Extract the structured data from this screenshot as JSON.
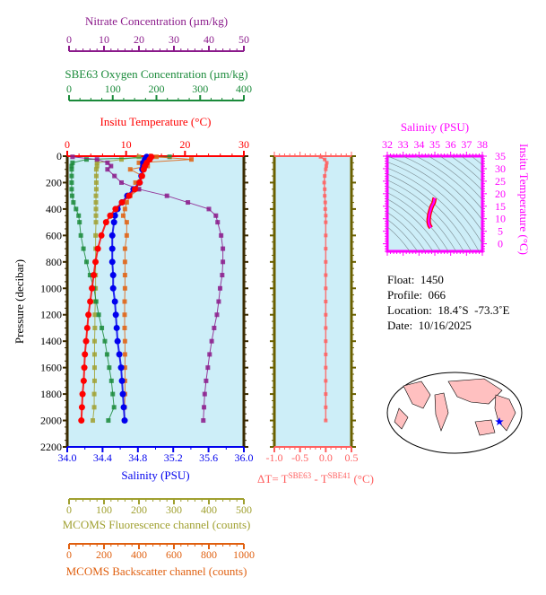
{
  "chart_data": {
    "type": "line",
    "ylabel": "Pressure (decibar)",
    "ylim": [
      0,
      2200
    ],
    "yticks": [
      "0",
      "200",
      "400",
      "600",
      "800",
      "1000",
      "1200",
      "1400",
      "1600",
      "1800",
      "2000",
      "2200"
    ],
    "axes": {
      "nitrate": {
        "label": "Nitrate Concentration (µm/kg)",
        "range": [
          0,
          50
        ],
        "ticks": [
          "0",
          "10",
          "20",
          "30",
          "40",
          "50"
        ],
        "color": "#8b1a8b"
      },
      "oxygen": {
        "label": "SBE63 Oxygen Concentration (µm/kg)",
        "range": [
          0,
          400
        ],
        "ticks": [
          "0",
          "100",
          "200",
          "300",
          "400"
        ],
        "color": "#1a8a3a"
      },
      "temperature": {
        "label": "Insitu Temperature (°C)",
        "range": [
          0,
          30
        ],
        "ticks": [
          "0",
          "10",
          "20",
          "30"
        ],
        "color": "#ff0000"
      },
      "salinity": {
        "label": "Salinity (PSU)",
        "range": [
          34.0,
          36.0
        ],
        "ticks": [
          "34.0",
          "34.4",
          "34.8",
          "35.2",
          "35.6",
          "36.0"
        ],
        "color": "#0000ee"
      },
      "fluorescence": {
        "label": "MCOMS Fluorescence channel (counts)",
        "range": [
          0,
          500
        ],
        "ticks": [
          "0",
          "100",
          "200",
          "300",
          "400",
          "500"
        ],
        "color": "#a0a030"
      },
      "backscatter": {
        "label": "MCOMS Backscatter channel (counts)",
        "range": [
          0,
          1000
        ],
        "ticks": [
          "0",
          "200",
          "400",
          "600",
          "800",
          "1000"
        ],
        "color": "#e06010"
      },
      "delta_t": {
        "label_prefix": "ΔT= T",
        "sup1": "SBE63",
        "mid": " - T",
        "sup2": "SBE41",
        "suffix": " (°C)",
        "range": [
          -1.0,
          0.5
        ],
        "ticks": [
          "-1.0",
          "-0.5",
          "0.0",
          "0.5"
        ],
        "color": "#ff6060"
      }
    },
    "pressure": [
      5,
      25,
      50,
      75,
      100,
      150,
      200,
      250,
      300,
      350,
      400,
      450,
      500,
      600,
      700,
      800,
      900,
      1000,
      1100,
      1200,
      1300,
      1400,
      1500,
      1600,
      1700,
      1800,
      1900,
      2000
    ],
    "series": [
      {
        "key": "temperature",
        "values": [
          14.3,
          14.0,
          13.5,
          13.2,
          13.0,
          12.7,
          12.3,
          11.5,
          10.5,
          9.3,
          8.2,
          7.3,
          6.6,
          5.8,
          5.2,
          4.8,
          4.5,
          4.2,
          3.9,
          3.6,
          3.4,
          3.2,
          3.0,
          2.9,
          2.8,
          2.6,
          2.5,
          2.4
        ]
      },
      {
        "key": "salinity",
        "values": [
          34.9,
          34.88,
          34.86,
          34.86,
          34.85,
          34.84,
          34.82,
          34.75,
          34.68,
          34.62,
          34.57,
          34.54,
          34.53,
          34.51,
          34.51,
          34.51,
          34.52,
          34.52,
          34.54,
          34.55,
          34.56,
          34.57,
          34.59,
          34.61,
          34.62,
          34.63,
          34.64,
          34.65
        ]
      },
      {
        "key": "nitrate",
        "values": [
          1,
          8,
          11,
          12,
          11,
          13,
          15,
          20,
          28,
          34,
          40,
          42,
          42.5,
          43.5,
          44,
          44,
          43.8,
          43.2,
          42.8,
          42.3,
          41.5,
          40.8,
          40.2,
          39.7,
          39.2,
          38.8,
          38.6,
          38.4
        ]
      },
      {
        "key": "oxygen",
        "values": [
          230,
          40,
          8,
          6,
          6,
          6,
          6,
          6,
          7,
          10,
          16,
          22,
          24,
          27,
          33,
          40,
          48,
          57,
          62,
          68,
          75,
          82,
          87,
          92,
          97,
          100,
          103,
          90
        ]
      },
      {
        "key": "fluorescence",
        "values": [
          200,
          150,
          80,
          80,
          78,
          78,
          78,
          78,
          77,
          77,
          77,
          77,
          77,
          76,
          76,
          76,
          76,
          76,
          75,
          74,
          74,
          73,
          73,
          73,
          73,
          72,
          72,
          68
        ]
      },
      {
        "key": "backscatter",
        "values": [
          500,
          700,
          400,
          450,
          350,
          420,
          380,
          400,
          350,
          330,
          320,
          310,
          330,
          330,
          320,
          320,
          320,
          320,
          318,
          318,
          318,
          320,
          320,
          320,
          320,
          320,
          318,
          315
        ]
      },
      {
        "key": "delta_t",
        "values": [
          -0.1,
          -0.02,
          0.02,
          0.01,
          0,
          -0.02,
          -0.03,
          -0.02,
          -0.02,
          -0.01,
          -0.01,
          0,
          0,
          0,
          0,
          0,
          0,
          0,
          0,
          0,
          0,
          0,
          0,
          0,
          0,
          0,
          0,
          0
        ]
      }
    ],
    "ts_diagram": {
      "xlabel": "Salinity (PSU)",
      "xticks": [
        "32",
        "33",
        "34",
        "35",
        "36",
        "37",
        "38"
      ],
      "xrange": [
        32,
        38
      ],
      "ylabel": "Insitu Temperature (°C)",
      "yticks": [
        "0",
        "5",
        "10",
        "15",
        "20",
        "25",
        "30",
        "35"
      ],
      "yrange": [
        -3,
        35
      ],
      "color": "#ff00ff"
    },
    "map": {
      "marker": "star",
      "marker_color": "#0000ff",
      "land_color": "#ffc0c0",
      "ocean_color": "#ffffff"
    }
  },
  "info": {
    "float": "Float:  1450",
    "profile": "Profile:  066",
    "location": "Location:  18.4˚S  -73.3˚E",
    "date": "Date:  10/16/2025"
  },
  "plot_background": "#cdeef8"
}
